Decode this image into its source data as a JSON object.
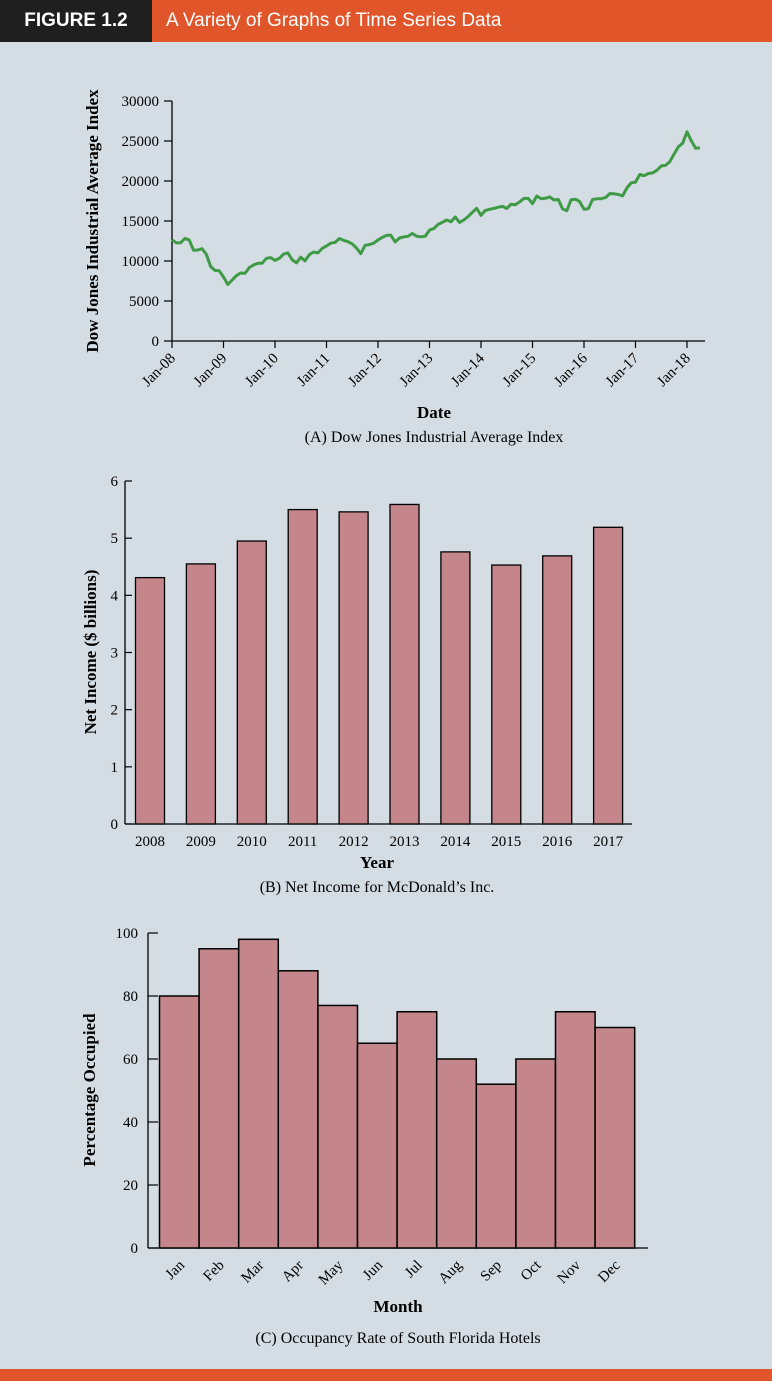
{
  "figure": {
    "label": "FIGURE 1.2",
    "title": "A Variety of Graphs of Time Series Data"
  },
  "colors": {
    "header_orange": "#e0552a",
    "header_black": "#1f1f1f",
    "background": "#d5dde4",
    "line_green": "#3f9a45",
    "bar_fill": "#c4868a"
  },
  "chart_data": [
    {
      "type": "line",
      "caption": "(A) Dow Jones Industrial Average Index",
      "xlabel": "Date",
      "ylabel": "Dow Jones Industrial Average Index",
      "ylim": [
        0,
        30000
      ],
      "yticks": [
        0,
        5000,
        10000,
        15000,
        20000,
        25000,
        30000
      ],
      "xticks": [
        "Jan-08",
        "Jan-09",
        "Jan-10",
        "Jan-11",
        "Jan-12",
        "Jan-13",
        "Jan-14",
        "Jan-15",
        "Jan-16",
        "Jan-17",
        "Jan-18"
      ],
      "x": [
        "Jan-08",
        "Feb-08",
        "Mar-08",
        "Apr-08",
        "May-08",
        "Jun-08",
        "Jul-08",
        "Aug-08",
        "Sep-08",
        "Oct-08",
        "Nov-08",
        "Dec-08",
        "Jan-09",
        "Feb-09",
        "Mar-09",
        "Apr-09",
        "May-09",
        "Jun-09",
        "Jul-09",
        "Aug-09",
        "Sep-09",
        "Oct-09",
        "Nov-09",
        "Dec-09",
        "Jan-10",
        "Feb-10",
        "Mar-10",
        "Apr-10",
        "May-10",
        "Jun-10",
        "Jul-10",
        "Aug-10",
        "Sep-10",
        "Oct-10",
        "Nov-10",
        "Dec-10",
        "Jan-11",
        "Feb-11",
        "Mar-11",
        "Apr-11",
        "May-11",
        "Jun-11",
        "Jul-11",
        "Aug-11",
        "Sep-11",
        "Oct-11",
        "Nov-11",
        "Dec-11",
        "Jan-12",
        "Feb-12",
        "Mar-12",
        "Apr-12",
        "May-12",
        "Jun-12",
        "Jul-12",
        "Aug-12",
        "Sep-12",
        "Oct-12",
        "Nov-12",
        "Dec-12",
        "Jan-13",
        "Feb-13",
        "Mar-13",
        "Apr-13",
        "May-13",
        "Jun-13",
        "Jul-13",
        "Aug-13",
        "Sep-13",
        "Oct-13",
        "Nov-13",
        "Dec-13",
        "Jan-14",
        "Feb-14",
        "Mar-14",
        "Apr-14",
        "May-14",
        "Jun-14",
        "Jul-14",
        "Aug-14",
        "Sep-14",
        "Oct-14",
        "Nov-14",
        "Dec-14",
        "Jan-15",
        "Feb-15",
        "Mar-15",
        "Apr-15",
        "May-15",
        "Jun-15",
        "Jul-15",
        "Aug-15",
        "Sep-15",
        "Oct-15",
        "Nov-15",
        "Dec-15",
        "Jan-16",
        "Feb-16",
        "Mar-16",
        "Apr-16",
        "May-16",
        "Jun-16",
        "Jul-16",
        "Aug-16",
        "Sep-16",
        "Oct-16",
        "Nov-16",
        "Dec-16",
        "Jan-17",
        "Feb-17",
        "Mar-17",
        "Apr-17",
        "May-17",
        "Jun-17",
        "Jul-17",
        "Aug-17",
        "Sep-17",
        "Oct-17",
        "Nov-17",
        "Dec-17",
        "Jan-18",
        "Feb-18",
        "Mar-18",
        "Apr-18"
      ],
      "values": [
        12650,
        12270,
        12260,
        12820,
        12640,
        11350,
        11380,
        11540,
        10850,
        9330,
        8830,
        8780,
        8000,
        7060,
        7610,
        8170,
        8500,
        8450,
        9170,
        9500,
        9710,
        9710,
        10340,
        10430,
        10070,
        10330,
        10860,
        11010,
        10140,
        9770,
        10470,
        10010,
        10790,
        11120,
        11010,
        11580,
        11890,
        12230,
        12320,
        12810,
        12570,
        12410,
        12140,
        11610,
        10910,
        11960,
        12050,
        12220,
        12630,
        12950,
        13210,
        13210,
        12390,
        12880,
        13010,
        13090,
        13440,
        13100,
        13030,
        13100,
        13860,
        14050,
        14580,
        14840,
        15120,
        14910,
        15500,
        14810,
        15130,
        15550,
        16090,
        16580,
        15700,
        16320,
        16460,
        16580,
        16720,
        16830,
        16560,
        17100,
        17040,
        17390,
        17830,
        17820,
        17160,
        18130,
        17780,
        17840,
        18010,
        17620,
        17690,
        16530,
        16280,
        17660,
        17720,
        17430,
        16470,
        16520,
        17690,
        17770,
        17790,
        17930,
        18430,
        18400,
        18310,
        18140,
        19120,
        19760,
        19860,
        20810,
        20660,
        20940,
        21010,
        21350,
        21890,
        21950,
        22410,
        23380,
        24270,
        24720,
        26150,
        25030,
        24100,
        24160
      ]
    },
    {
      "type": "bar",
      "caption": "(B) Net Income for McDonald’s Inc.",
      "xlabel": "Year",
      "ylabel": "Net Income ($ billions)",
      "ylim": [
        0,
        6
      ],
      "yticks": [
        0,
        1,
        2,
        3,
        4,
        5,
        6
      ],
      "categories": [
        "2008",
        "2009",
        "2010",
        "2011",
        "2012",
        "2013",
        "2014",
        "2015",
        "2016",
        "2017"
      ],
      "values": [
        4.31,
        4.55,
        4.95,
        5.5,
        5.46,
        5.59,
        4.76,
        4.53,
        4.69,
        5.19
      ]
    },
    {
      "type": "bar",
      "caption": "(C) Occupancy Rate of South Florida Hotels",
      "xlabel": "Month",
      "ylabel": "Percentage Occupied",
      "ylim": [
        0,
        100
      ],
      "yticks": [
        0,
        20,
        40,
        60,
        80,
        100
      ],
      "categories": [
        "Jan",
        "Feb",
        "Mar",
        "Apr",
        "May",
        "Jun",
        "Jul",
        "Aug",
        "Sep",
        "Oct",
        "Nov",
        "Dec"
      ],
      "values": [
        80,
        95,
        98,
        88,
        77,
        65,
        75,
        60,
        52,
        60,
        75,
        70
      ]
    }
  ]
}
